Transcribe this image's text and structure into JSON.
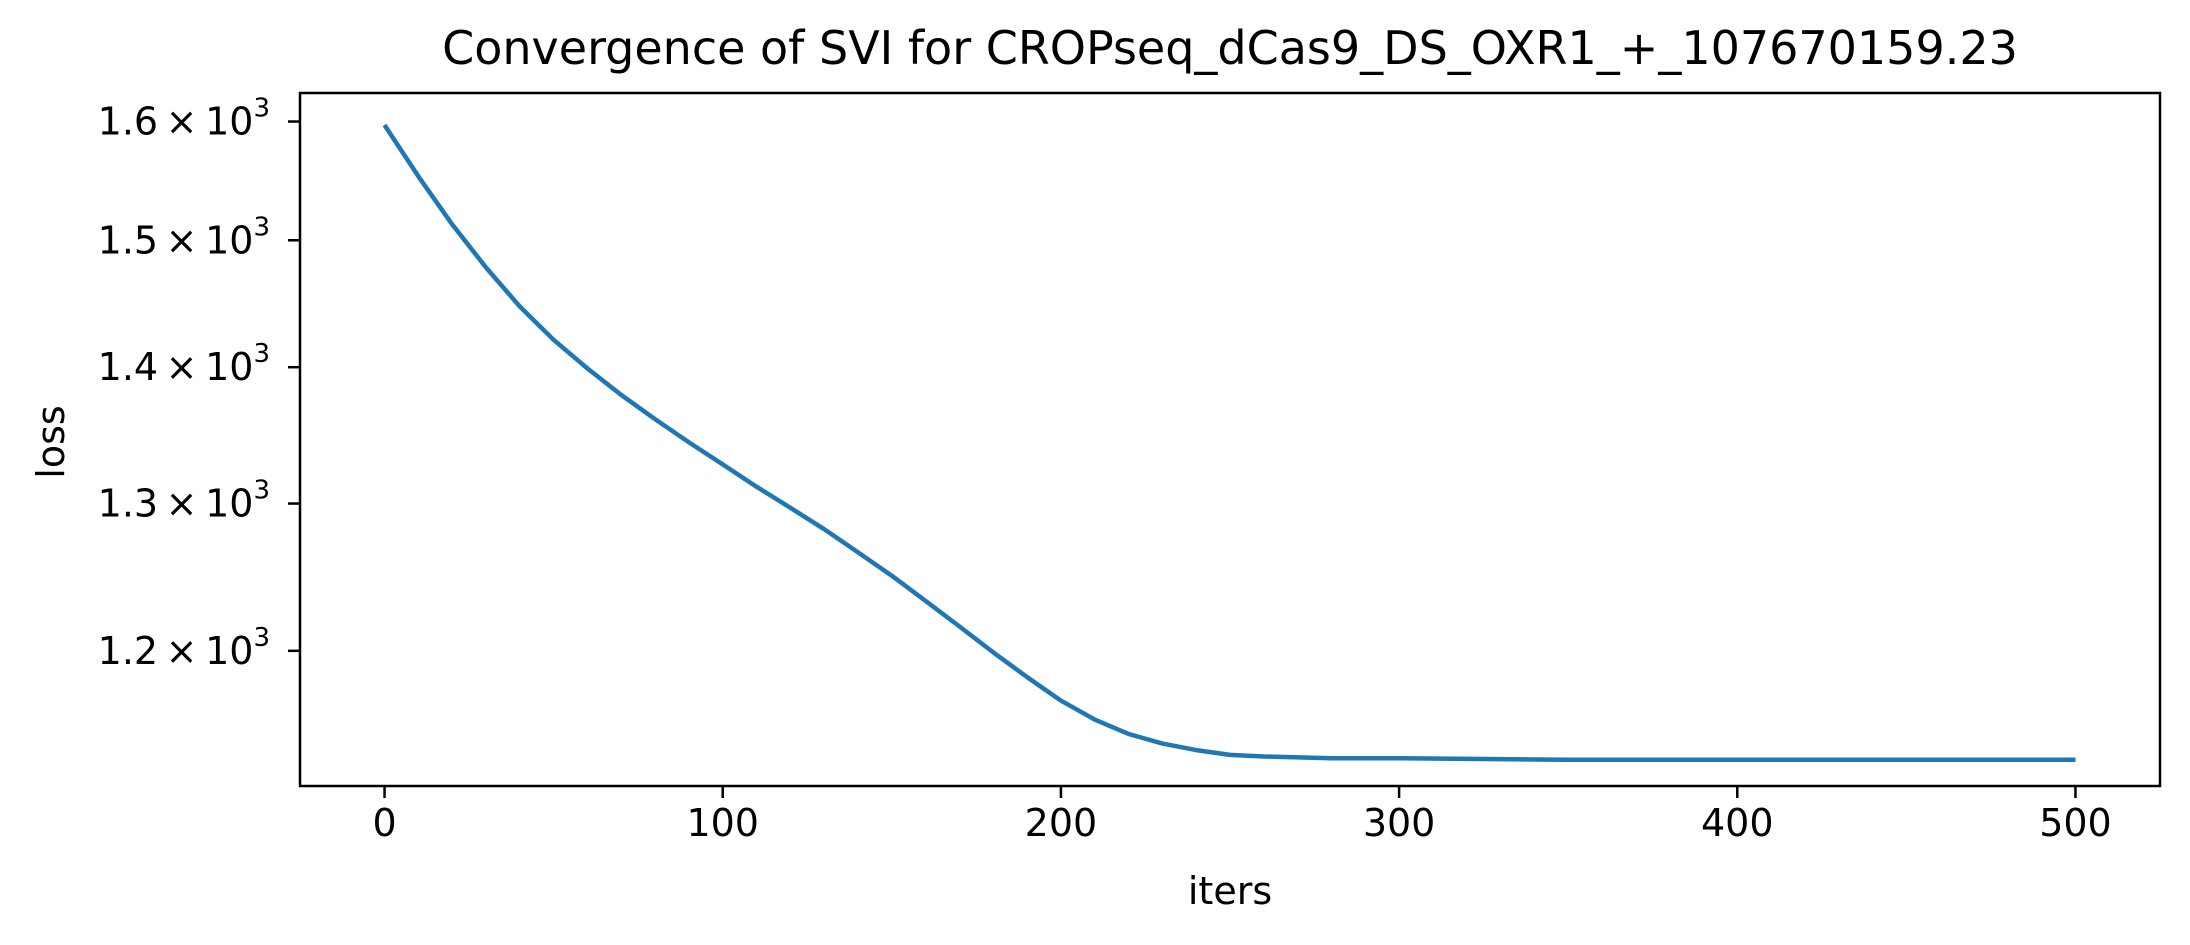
{
  "chart_data": {
    "type": "line",
    "title": "Convergence of SVI for CROPseq_dCas9_DS_OXR1_+_107670159.23",
    "xlabel": "iters",
    "ylabel": "loss",
    "yscale": "log",
    "xlim": [
      -25,
      525
    ],
    "ylim": [
      1115,
      1625
    ],
    "grid": false,
    "color": "#1f77b4",
    "x_ticks": [
      {
        "value": 0,
        "label": "0"
      },
      {
        "value": 100,
        "label": "100"
      },
      {
        "value": 200,
        "label": "200"
      },
      {
        "value": 300,
        "label": "300"
      },
      {
        "value": 400,
        "label": "400"
      },
      {
        "value": 500,
        "label": "500"
      }
    ],
    "y_ticks": [
      {
        "value": 1200,
        "mantissa": "1.2",
        "base": "10",
        "exp": "3"
      },
      {
        "value": 1300,
        "mantissa": "1.3",
        "base": "10",
        "exp": "3"
      },
      {
        "value": 1400,
        "mantissa": "1.4",
        "base": "10",
        "exp": "3"
      },
      {
        "value": 1500,
        "mantissa": "1.5",
        "base": "10",
        "exp": "3"
      },
      {
        "value": 1600,
        "mantissa": "1.6",
        "base": "10",
        "exp": "3"
      }
    ],
    "series": [
      {
        "x": [
          0,
          10,
          20,
          30,
          40,
          50,
          60,
          70,
          80,
          90,
          100,
          110,
          120,
          130,
          140,
          150,
          160,
          170,
          180,
          190,
          200,
          210,
          220,
          230,
          240,
          250,
          260,
          280,
          300,
          350,
          400,
          450,
          500
        ],
        "values": [
          1597,
          1553,
          1513,
          1478,
          1447,
          1421,
          1399,
          1379,
          1361,
          1344,
          1328,
          1312,
          1297,
          1282,
          1266,
          1250,
          1233,
          1216,
          1199,
          1183,
          1168,
          1156,
          1147,
          1141,
          1137,
          1134,
          1133,
          1132,
          1132,
          1131,
          1131,
          1131,
          1131
        ]
      }
    ]
  }
}
